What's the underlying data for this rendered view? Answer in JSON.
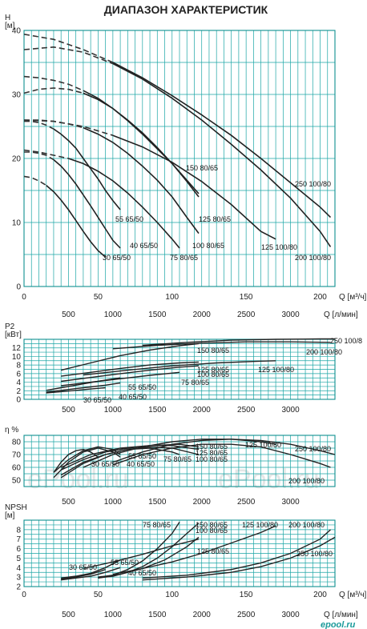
{
  "title": "ДИАПАЗОН ХАРАКТЕРИСТИК",
  "watermark": [
    "ePool.ru",
    "ePool.ru"
  ],
  "logo_text": "epool.ru",
  "colors": {
    "grid": "#1aa5a5",
    "curve": "#222222",
    "text": "#222222",
    "background": "#ffffff"
  },
  "chart_data": [
    {
      "type": "line",
      "title": "ДИАПАЗОН ХАРАКТЕРИСТИК",
      "ylabel": "H",
      "yunit": "[м]",
      "xlabel": "Q [м³/ч]",
      "xlabel2": "Q [л/мин]",
      "xlim": [
        0,
        210
      ],
      "ylim": [
        0,
        40
      ],
      "xticks": [
        0,
        50,
        100,
        150,
        200
      ],
      "xticks2": [
        500,
        1000,
        1500,
        2000,
        2500,
        3000
      ],
      "yticks": [
        0,
        10,
        20,
        30,
        40
      ],
      "grid": true,
      "series": [
        {
          "name": "30 65/50",
          "x": [
            0,
            5,
            10,
            15,
            20,
            25,
            30,
            35,
            40,
            45,
            50,
            55
          ],
          "y": [
            17.2,
            17,
            16.5,
            15.8,
            14.8,
            13.5,
            12,
            10.3,
            8.6,
            7,
            5.6,
            4.6
          ]
        },
        {
          "name": "40 65/50",
          "x": [
            0,
            5,
            10,
            15,
            20,
            25,
            30,
            35,
            40,
            45,
            50,
            55,
            60,
            65
          ],
          "y": [
            21,
            21,
            20.8,
            20.5,
            19.8,
            18.8,
            17.5,
            16,
            14.3,
            12.6,
            10.8,
            9,
            7.2,
            6
          ]
        },
        {
          "name": "55 65/50",
          "x": [
            0,
            5,
            10,
            15,
            20,
            25,
            30,
            35,
            40,
            45,
            50,
            55,
            60,
            65
          ],
          "y": [
            25.8,
            25.8,
            25.6,
            25.2,
            24.6,
            23.8,
            22.8,
            21.6,
            20,
            18.4,
            16.8,
            15,
            13.4,
            12
          ]
        },
        {
          "name": "75 80/65",
          "x": [
            0,
            10,
            20,
            30,
            40,
            50,
            60,
            70,
            80,
            90,
            100,
            105
          ],
          "y": [
            21.3,
            21,
            20.5,
            20,
            19.2,
            18,
            16.5,
            14.6,
            12.4,
            10,
            7.4,
            6
          ]
        },
        {
          "name": "100 80/65",
          "x": [
            0,
            10,
            20,
            30,
            40,
            50,
            60,
            70,
            80,
            90,
            100,
            110,
            118
          ],
          "y": [
            26,
            26,
            25.8,
            25.4,
            24.8,
            23.8,
            22.5,
            20.8,
            18.8,
            16.6,
            14,
            10.8,
            8.3
          ]
        },
        {
          "name": "125 80/65",
          "x": [
            0,
            10,
            20,
            30,
            40,
            50,
            60,
            70,
            80,
            90,
            100,
            110,
            118
          ],
          "y": [
            30.2,
            30.8,
            31,
            30.8,
            30.2,
            29.2,
            27.8,
            26,
            24,
            21.7,
            19.2,
            16.4,
            14
          ]
        },
        {
          "name": "150 80/65",
          "x": [
            0,
            10,
            20,
            30,
            40,
            50,
            60,
            70,
            80,
            90,
            100,
            110,
            118
          ],
          "y": [
            32.8,
            32.6,
            32.2,
            31.6,
            30.6,
            29.4,
            27.8,
            25.9,
            23.8,
            21.5,
            19.2,
            16.6,
            14.5
          ]
        },
        {
          "name": "125 100/80",
          "x": [
            0,
            20,
            40,
            60,
            80,
            100,
            120,
            140,
            160,
            170
          ],
          "y": [
            26,
            25.8,
            25,
            23.6,
            21.8,
            19.4,
            16.4,
            12.8,
            8.6,
            7.4
          ]
        },
        {
          "name": "200 100/80",
          "x": [
            0,
            20,
            40,
            60,
            80,
            100,
            120,
            140,
            160,
            180,
            200,
            207
          ],
          "y": [
            37,
            37.4,
            36.6,
            34.8,
            32.4,
            29.4,
            26,
            22.2,
            18.2,
            13.8,
            8.6,
            6.2
          ]
        },
        {
          "name": "250 100/80",
          "x": [
            0,
            20,
            40,
            60,
            80,
            100,
            120,
            140,
            160,
            180,
            200,
            207
          ],
          "y": [
            39.4,
            38.6,
            37,
            35,
            32.6,
            29.8,
            26.8,
            23.6,
            20,
            16.2,
            12.4,
            10.8
          ]
        }
      ]
    },
    {
      "type": "line",
      "ylabel": "P2",
      "yunit": "[кВт]",
      "xlim": [
        0,
        210
      ],
      "ylim": [
        0,
        14
      ],
      "yticks": [
        0,
        2,
        4,
        6,
        8,
        10,
        12
      ],
      "xticks2": [
        500,
        1000,
        1500,
        2000,
        2500,
        3000
      ],
      "grid": true,
      "series": [
        {
          "name": "30 65/50",
          "x": [
            15,
            25,
            35,
            45,
            55
          ],
          "y": [
            1.5,
            1.8,
            2.1,
            2.4,
            2.7
          ]
        },
        {
          "name": "40 65/50",
          "x": [
            15,
            25,
            35,
            45,
            55,
            65
          ],
          "y": [
            1.7,
            2.1,
            2.5,
            2.9,
            3.3,
            3.8
          ]
        },
        {
          "name": "55 65/50",
          "x": [
            15,
            25,
            35,
            45,
            55,
            65
          ],
          "y": [
            2.1,
            2.7,
            3.3,
            3.9,
            4.5,
            5
          ]
        },
        {
          "name": "75 80/65",
          "x": [
            25,
            45,
            65,
            85,
            105
          ],
          "y": [
            3.2,
            4,
            4.8,
            5.6,
            6.3
          ]
        },
        {
          "name": "100 80/65",
          "x": [
            25,
            45,
            65,
            85,
            105,
            118
          ],
          "y": [
            4.2,
            5.1,
            6,
            6.8,
            7.5,
            7.8
          ]
        },
        {
          "name": "125 80/65",
          "x": [
            25,
            45,
            65,
            85,
            105,
            118
          ],
          "y": [
            5.4,
            6.3,
            7.2,
            8,
            8.5,
            8.7
          ]
        },
        {
          "name": "150 80/65",
          "x": [
            25,
            45,
            65,
            85,
            105,
            118
          ],
          "y": [
            6.8,
            8.5,
            10.2,
            11.5,
            12.5,
            13
          ]
        },
        {
          "name": "125 100/80",
          "x": [
            40,
            70,
            100,
            130,
            160,
            170
          ],
          "y": [
            5.7,
            6.8,
            7.8,
            8.5,
            8.9,
            9
          ]
        },
        {
          "name": "200 100/80",
          "x": [
            60,
            90,
            120,
            150,
            180,
            207
          ],
          "y": [
            11.8,
            12.6,
            13.1,
            13.4,
            13.4,
            13.3
          ]
        },
        {
          "name": "250 100/8",
          "x": [
            80,
            110,
            140,
            170,
            200,
            210
          ],
          "y": [
            12.6,
            13.3,
            13.8,
            14,
            14.1,
            14.1
          ]
        }
      ]
    },
    {
      "type": "line",
      "ylabel": "η %",
      "xlim": [
        0,
        210
      ],
      "ylim": [
        45,
        85
      ],
      "yticks": [
        50,
        60,
        70,
        80
      ],
      "xticks2": [
        500,
        1000,
        1500,
        2000,
        2500,
        3000
      ],
      "grid": true,
      "series": [
        {
          "name": "30 65/50",
          "x": [
            20,
            25,
            30,
            35,
            40,
            45,
            50
          ],
          "y": [
            56,
            64,
            70,
            73,
            74,
            72,
            68
          ]
        },
        {
          "name": "40 65/50",
          "x": [
            20,
            30,
            40,
            50,
            60,
            65
          ],
          "y": [
            52,
            64,
            72,
            75,
            72,
            68
          ]
        },
        {
          "name": "55 65/50",
          "x": [
            20,
            30,
            40,
            50,
            60,
            65
          ],
          "y": [
            56,
            66,
            73,
            76,
            74,
            70
          ]
        },
        {
          "name": "75 80/65",
          "x": [
            25,
            40,
            55,
            70,
            85,
            100,
            105
          ],
          "y": [
            52,
            63,
            70,
            74,
            75,
            72,
            70
          ]
        },
        {
          "name": "100 80/65",
          "x": [
            25,
            40,
            55,
            70,
            85,
            100,
            118
          ],
          "y": [
            54,
            64,
            70,
            74,
            76,
            75,
            70
          ]
        },
        {
          "name": "125 80/65",
          "x": [
            25,
            40,
            55,
            70,
            85,
            100,
            118
          ],
          "y": [
            58,
            66,
            72,
            75,
            77,
            77,
            74
          ]
        },
        {
          "name": "150 80/65",
          "x": [
            25,
            45,
            65,
            85,
            105,
            118
          ],
          "y": [
            60,
            70,
            75,
            77,
            78,
            76
          ]
        },
        {
          "name": "125 100/80",
          "x": [
            40,
            60,
            80,
            100,
            120,
            140,
            160,
            170
          ],
          "y": [
            60,
            70,
            76,
            80,
            82,
            82,
            80,
            78
          ]
        },
        {
          "name": "200 100/80",
          "x": [
            60,
            80,
            100,
            120,
            140,
            160,
            180,
            200,
            207
          ],
          "y": [
            62,
            70,
            75,
            78,
            78,
            76,
            70,
            63,
            60
          ]
        },
        {
          "name": "250 100/80",
          "x": [
            60,
            80,
            100,
            120,
            140,
            160,
            180,
            200,
            210
          ],
          "y": [
            64,
            72,
            78,
            81,
            82,
            81,
            78,
            73,
            70
          ]
        }
      ]
    },
    {
      "type": "line",
      "ylabel": "NPSH",
      "yunit": "[м]",
      "xlabel": "Q [м³/ч]",
      "xlabel2": "Q [л/мин]",
      "xlim": [
        0,
        210
      ],
      "ylim": [
        2,
        9
      ],
      "xticks": [
        0,
        50,
        100,
        150,
        200
      ],
      "xticks2": [
        500,
        1000,
        1500,
        2000,
        2500,
        3000
      ],
      "yticks": [
        2,
        3,
        4,
        5,
        6,
        7,
        8
      ],
      "grid": true,
      "series": [
        {
          "name": "30 65/50",
          "x": [
            25,
            35,
            45,
            55
          ],
          "y": [
            2.8,
            3,
            3.3,
            3.8
          ]
        },
        {
          "name": "40 65/50",
          "x": [
            25,
            35,
            45,
            55,
            65
          ],
          "y": [
            2.7,
            2.9,
            3.1,
            3.5,
            4
          ]
        },
        {
          "name": "55 65/50",
          "x": [
            25,
            35,
            45,
            55,
            65
          ],
          "y": [
            2.9,
            3.1,
            3.4,
            4,
            4.8
          ]
        },
        {
          "name": "75 80/65",
          "x": [
            50,
            60,
            70,
            80,
            90,
            100,
            105
          ],
          "y": [
            2.9,
            3.2,
            3.8,
            4.7,
            6,
            7.6,
            8.8
          ]
        },
        {
          "name": "100 80/65",
          "x": [
            50,
            60,
            70,
            80,
            90,
            100,
            110,
            118
          ],
          "y": [
            2.9,
            3.1,
            3.5,
            4.1,
            5,
            6.2,
            7.6,
            8.7
          ]
        },
        {
          "name": "125 80/65",
          "x": [
            50,
            65,
            80,
            95,
            110,
            118
          ],
          "y": [
            3,
            3.3,
            3.9,
            4.8,
            6.2,
            7.2
          ]
        },
        {
          "name": "150 80/65",
          "x": [
            40,
            60,
            80,
            100,
            118
          ],
          "y": [
            3.9,
            4.6,
            5.4,
            6.3,
            7
          ]
        },
        {
          "name": "125 100/80",
          "x": [
            60,
            80,
            100,
            120,
            140,
            160,
            170
          ],
          "y": [
            3.3,
            3.9,
            4.6,
            5.5,
            6.6,
            7.7,
            8.4
          ]
        },
        {
          "name": "200 100/80",
          "x": [
            80,
            110,
            140,
            160,
            180,
            200,
            207
          ],
          "y": [
            2.9,
            3.2,
            3.8,
            4.5,
            5.5,
            7,
            8
          ]
        },
        {
          "name": "250 100/80",
          "x": [
            80,
            110,
            140,
            160,
            180,
            200,
            210
          ],
          "y": [
            2.7,
            3,
            3.5,
            4.1,
            5,
            6.3,
            7.2
          ]
        }
      ]
    }
  ]
}
